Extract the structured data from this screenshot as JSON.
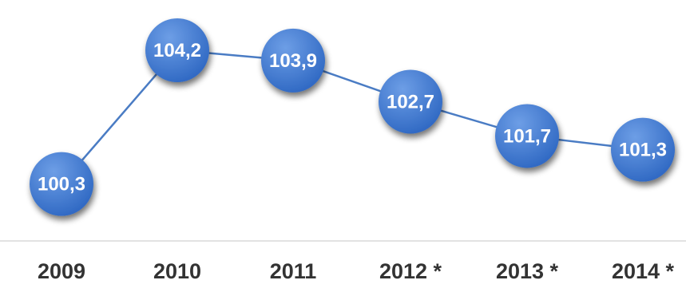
{
  "chart_data": {
    "type": "line",
    "categories": [
      "2009",
      "2010",
      "2011",
      "2012 *",
      "2013 *",
      "2014 *"
    ],
    "values": [
      100.3,
      104.2,
      103.9,
      102.7,
      101.7,
      101.3
    ],
    "value_labels": [
      "100,3",
      "104,2",
      "103,9",
      "102,7",
      "101,7",
      "101,3"
    ],
    "title": "",
    "xlabel": "",
    "ylabel": "",
    "ylim": [
      99.5,
      105.2
    ],
    "grid": false,
    "legend": "none",
    "colors": {
      "line": "#4a7cc4",
      "marker": "#2e67c2",
      "marker_highlight": "#6d9ee6",
      "label_text": "#ffffff",
      "tick_text": "#333333",
      "axis_line": "#d9d9d9"
    }
  }
}
